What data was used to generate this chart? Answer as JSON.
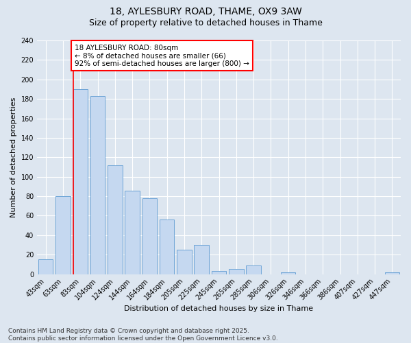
{
  "title_line1": "18, AYLESBURY ROAD, THAME, OX9 3AW",
  "title_line2": "Size of property relative to detached houses in Thame",
  "xlabel": "Distribution of detached houses by size in Thame",
  "ylabel": "Number of detached properties",
  "bar_labels": [
    "43sqm",
    "63sqm",
    "83sqm",
    "104sqm",
    "124sqm",
    "144sqm",
    "164sqm",
    "184sqm",
    "205sqm",
    "225sqm",
    "245sqm",
    "265sqm",
    "285sqm",
    "306sqm",
    "326sqm",
    "346sqm",
    "366sqm",
    "386sqm",
    "407sqm",
    "427sqm",
    "447sqm"
  ],
  "bar_values": [
    15,
    80,
    190,
    183,
    112,
    86,
    78,
    56,
    25,
    30,
    3,
    5,
    9,
    0,
    2,
    0,
    0,
    0,
    0,
    0,
    2
  ],
  "bar_color": "#c5d8f0",
  "bar_edge_color": "#6ba3d6",
  "red_line_index": 2,
  "annotation_text": "18 AYLESBURY ROAD: 80sqm\n← 8% of detached houses are smaller (66)\n92% of semi-detached houses are larger (800) →",
  "annotation_box_color": "white",
  "annotation_box_edge_color": "red",
  "ylim": [
    0,
    240
  ],
  "yticks": [
    0,
    20,
    40,
    60,
    80,
    100,
    120,
    140,
    160,
    180,
    200,
    220,
    240
  ],
  "background_color": "#dde6f0",
  "footer_text": "Contains HM Land Registry data © Crown copyright and database right 2025.\nContains public sector information licensed under the Open Government Licence v3.0.",
  "title_fontsize": 10,
  "subtitle_fontsize": 9,
  "ylabel_fontsize": 8,
  "xlabel_fontsize": 8,
  "tick_fontsize": 7,
  "annotation_fontsize": 7.5,
  "footer_fontsize": 6.5
}
